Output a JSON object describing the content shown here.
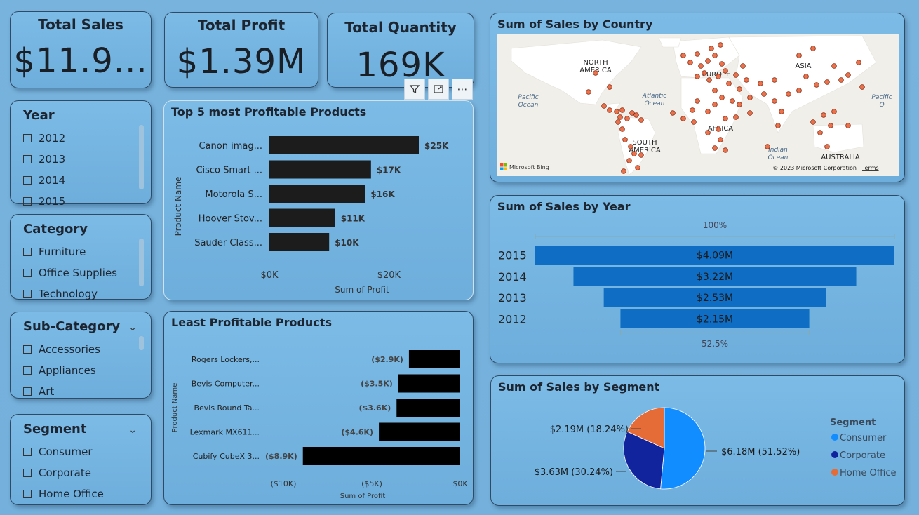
{
  "kpis": {
    "total_sales": {
      "title": "Total Sales",
      "value": "$11.9..."
    },
    "total_profit": {
      "title": "Total Profit",
      "value": "$1.39M"
    },
    "total_quantity": {
      "title": "Total Quantity",
      "value": "169K"
    }
  },
  "slicers": {
    "year": {
      "title": "Year",
      "items": [
        "2012",
        "2013",
        "2014",
        "2015"
      ]
    },
    "category": {
      "title": "Category",
      "items": [
        "Furniture",
        "Office Supplies",
        "Technology"
      ]
    },
    "subcategory": {
      "title": "Sub-Category",
      "items": [
        "Accessories",
        "Appliances",
        "Art"
      ]
    },
    "segment": {
      "title": "Segment",
      "items": [
        "Consumer",
        "Corporate",
        "Home Office"
      ]
    }
  },
  "map": {
    "title": "Sum of Sales by Country",
    "labels": {
      "north_america": "NORTH AMERICA",
      "south_america": "SOUTH AMERICA",
      "europe": "EUROPE",
      "africa": "AFRICA",
      "asia": "ASIA",
      "australia": "AUSTRALIA",
      "atlantic": "Atlantic Ocean",
      "pacific_left": "Pacific Ocean",
      "pacific_right": "Pacific O",
      "indian": "Indian Ocean"
    },
    "attribution": "© 2023 Microsoft Corporation",
    "terms": "Terms",
    "brand": "Microsoft Bing",
    "dot_color": "#e8643b"
  },
  "chart_data": [
    {
      "id": "top5",
      "type": "bar",
      "title": "Top 5 most Profitable Products",
      "xlabel": "Sum of Profit",
      "ylabel": "Product Name",
      "categories": [
        "Canon imag...",
        "Cisco Smart ...",
        "Motorola S...",
        "Hoover Stov...",
        "Sauder Class..."
      ],
      "values": [
        25000,
        17000,
        16000,
        11000,
        10000
      ],
      "labels": [
        "$25K",
        "$17K",
        "$16K",
        "$11K",
        "$10K"
      ],
      "xlim": [
        0,
        25000
      ],
      "ticks": [
        {
          "value": 0,
          "label": "$0K"
        },
        {
          "value": 20000,
          "label": "$20K"
        }
      ],
      "color": "#1c1c1c"
    },
    {
      "id": "least",
      "type": "bar",
      "title": "Least Profitable Products",
      "xlabel": "Sum of Profit",
      "ylabel": "Product Name",
      "categories": [
        "Rogers Lockers,...",
        "Bevis Computer...",
        "Bevis Round Ta...",
        "Lexmark MX611...",
        "Cubify CubeX 3..."
      ],
      "values": [
        -2900,
        -3500,
        -3600,
        -4600,
        -8900
      ],
      "labels": [
        "($2.9K)",
        "($3.5K)",
        "($3.6K)",
        "($4.6K)",
        "($8.9K)"
      ],
      "xlim": [
        -10000,
        0
      ],
      "ticks": [
        {
          "value": -10000,
          "label": "($10K)"
        },
        {
          "value": -5000,
          "label": "($5K)"
        },
        {
          "value": 0,
          "label": "$0K"
        }
      ],
      "color": "#000000"
    },
    {
      "id": "year",
      "type": "bar",
      "subtype": "funnel",
      "title": "Sum of Sales by Year",
      "categories": [
        "2015",
        "2014",
        "2013",
        "2012"
      ],
      "values": [
        4.09,
        3.22,
        2.53,
        2.15
      ],
      "labels": [
        "$4.09M",
        "$3.22M",
        "$2.53M",
        "$2.15M"
      ],
      "top_pct": "100%",
      "bottom_pct": "52.5%",
      "color": "#0f6ec4"
    },
    {
      "id": "segment",
      "type": "pie",
      "title": "Sum of Sales by Segment",
      "legend_title": "Segment",
      "categories": [
        "Consumer",
        "Corporate",
        "Home Office"
      ],
      "values": [
        6.18,
        3.63,
        2.19
      ],
      "labels": [
        "$6.18M (51.52%)",
        "$3.63M (30.24%)",
        "$2.19M (18.24%)"
      ],
      "colors": [
        "#118dff",
        "#12239e",
        "#e66c37"
      ],
      "legend_position": "right"
    }
  ]
}
